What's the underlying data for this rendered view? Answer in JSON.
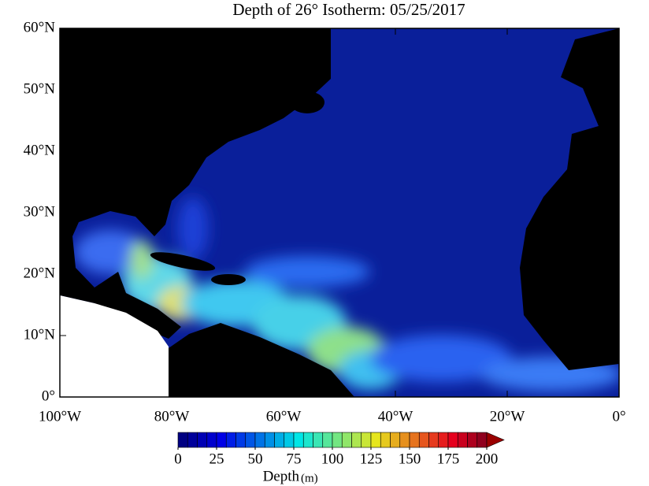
{
  "title": "Depth of 26° Isotherm: 05/25/2017",
  "map": {
    "xlim": [
      -100,
      0
    ],
    "ylim": [
      0,
      60
    ],
    "yticks": [
      {
        "value": 0,
        "label": "0°"
      },
      {
        "value": 10,
        "label": "10°N"
      },
      {
        "value": 20,
        "label": "20°N"
      },
      {
        "value": 30,
        "label": "30°N"
      },
      {
        "value": 40,
        "label": "40°N"
      },
      {
        "value": 50,
        "label": "50°N"
      },
      {
        "value": 60,
        "label": "60°N"
      }
    ],
    "xticks": [
      {
        "value": -100,
        "label": "100°W"
      },
      {
        "value": -80,
        "label": "80°W"
      },
      {
        "value": -60,
        "label": "60°W"
      },
      {
        "value": -40,
        "label": "40°W"
      },
      {
        "value": -20,
        "label": "20°W"
      },
      {
        "value": 0,
        "label": "0°"
      }
    ]
  },
  "colorbar": {
    "lim": [
      0,
      200
    ],
    "ticks": [
      0,
      25,
      50,
      75,
      100,
      125,
      150,
      175,
      200
    ],
    "label": "Depth",
    "unit": "(m)"
  }
}
